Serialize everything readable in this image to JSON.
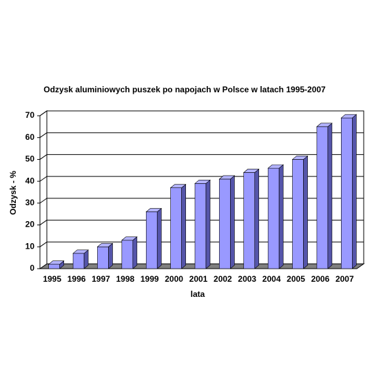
{
  "chart_data": {
    "type": "bar3d",
    "title": "Odzysk aluminiowych puszek po napojach w Polsce w latach 1995-2007",
    "x_label": "lata",
    "y_label": "Odzysk - %",
    "categories": [
      "1995",
      "1996",
      "1997",
      "1998",
      "1999",
      "2000",
      "2001",
      "2002",
      "2003",
      "2004",
      "2005",
      "2006",
      "2007"
    ],
    "values": [
      2,
      7,
      10,
      13,
      26,
      37,
      39,
      41,
      44,
      46,
      50,
      65,
      69
    ],
    "color": "#9999ff",
    "ylim": [
      0,
      70
    ],
    "yticks": [
      0,
      10,
      20,
      30,
      40,
      50,
      60,
      70
    ],
    "grid": true
  }
}
